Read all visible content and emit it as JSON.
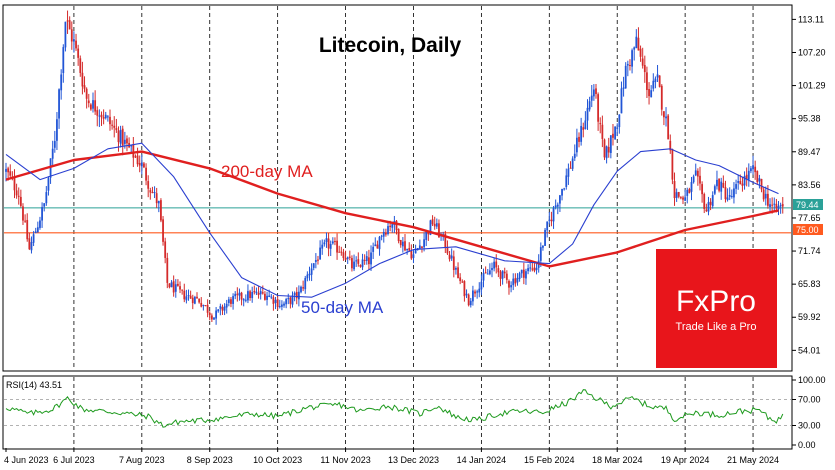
{
  "chart_data": {
    "type": "candlestick",
    "title": "Litecoin, Daily",
    "instrument": "Litecoin",
    "timeframe": "Daily",
    "brand": {
      "name": "FxPro",
      "tagline": "Trade Like a Pro",
      "color": "#e8151b"
    },
    "colors": {
      "bull": "#2155d6",
      "bear": "#d42a2a",
      "ma200": "#e01f1f",
      "ma50": "#2a3fd0",
      "current_price_line": "#2aa198",
      "level_line": "#ff5a1f",
      "rsi_line": "#1e9a1e",
      "grid": "#000000"
    },
    "y_axis": {
      "ticks": [
        "113.11",
        "107.20",
        "101.29",
        "95.38",
        "89.47",
        "83.56",
        "77.65",
        "71.74",
        "65.83",
        "59.92",
        "54.01"
      ],
      "range": [
        50.5,
        115.5
      ]
    },
    "x_axis": {
      "ticks": [
        "4 Jun 2023",
        "6 Jul 2023",
        "7 Aug 2023",
        "8 Sep 2023",
        "10 Oct 2023",
        "11 Nov 2023",
        "13 Dec 2023",
        "14 Jan 2024",
        "15 Feb 2024",
        "18 Mar 2024",
        "19 Apr 2024",
        "21 May 2024"
      ]
    },
    "current_price": "79.44",
    "level": "75.00",
    "annotations": {
      "ma200_label": "200-day MA",
      "ma50_label": "50-day MA"
    },
    "price_path": [
      [
        "2023-06-04",
        86
      ],
      [
        "2023-06-10",
        82
      ],
      [
        "2023-06-15",
        72
      ],
      [
        "2023-06-22",
        80
      ],
      [
        "2023-06-27",
        92
      ],
      [
        "2023-07-02",
        113
      ],
      [
        "2023-07-06",
        109
      ],
      [
        "2023-07-12",
        99
      ],
      [
        "2023-07-20",
        96
      ],
      [
        "2023-07-26",
        93
      ],
      [
        "2023-08-01",
        90
      ],
      [
        "2023-08-07",
        87
      ],
      [
        "2023-08-11",
        83
      ],
      [
        "2023-08-15",
        80
      ],
      [
        "2023-08-19",
        66
      ],
      [
        "2023-08-26",
        64
      ],
      [
        "2023-09-03",
        63
      ],
      [
        "2023-09-10",
        60
      ],
      [
        "2023-09-18",
        63
      ],
      [
        "2023-09-28",
        64
      ],
      [
        "2023-10-05",
        64
      ],
      [
        "2023-10-12",
        62
      ],
      [
        "2023-10-20",
        64
      ],
      [
        "2023-10-26",
        69
      ],
      [
        "2023-11-02",
        73
      ],
      [
        "2023-11-09",
        72
      ],
      [
        "2023-11-14",
        69
      ],
      [
        "2023-11-22",
        70
      ],
      [
        "2023-11-28",
        75
      ],
      [
        "2023-12-03",
        77
      ],
      [
        "2023-12-08",
        73
      ],
      [
        "2023-12-13",
        71
      ],
      [
        "2023-12-18",
        74
      ],
      [
        "2023-12-22",
        77
      ],
      [
        "2023-12-28",
        73
      ],
      [
        "2024-01-03",
        67
      ],
      [
        "2024-01-08",
        63
      ],
      [
        "2024-01-13",
        66
      ],
      [
        "2024-01-20",
        69
      ],
      [
        "2024-01-27",
        66
      ],
      [
        "2024-02-03",
        68
      ],
      [
        "2024-02-09",
        69
      ],
      [
        "2024-02-14",
        76
      ],
      [
        "2024-02-20",
        82
      ],
      [
        "2024-02-24",
        86
      ],
      [
        "2024-03-01",
        93
      ],
      [
        "2024-03-07",
        101
      ],
      [
        "2024-03-12",
        88
      ],
      [
        "2024-03-18",
        95
      ],
      [
        "2024-03-22",
        104
      ],
      [
        "2024-03-27",
        109
      ],
      [
        "2024-04-02",
        100
      ],
      [
        "2024-04-06",
        102
      ],
      [
        "2024-04-11",
        93
      ],
      [
        "2024-04-14",
        82
      ],
      [
        "2024-04-19",
        81
      ],
      [
        "2024-04-24",
        85
      ],
      [
        "2024-04-29",
        79
      ],
      [
        "2024-05-04",
        84
      ],
      [
        "2024-05-10",
        81
      ],
      [
        "2024-05-15",
        84
      ],
      [
        "2024-05-21",
        86
      ],
      [
        "2024-05-26",
        82
      ],
      [
        "2024-05-31",
        79
      ],
      [
        "2024-06-04",
        80
      ]
    ],
    "ma200": [
      [
        "2023-06-04",
        84.5
      ],
      [
        "2023-07-06",
        88
      ],
      [
        "2023-08-07",
        89.5
      ],
      [
        "2023-09-08",
        86.5
      ],
      [
        "2023-10-10",
        82
      ],
      [
        "2023-11-11",
        78.5
      ],
      [
        "2023-12-13",
        76
      ],
      [
        "2024-01-14",
        72.5
      ],
      [
        "2024-02-15",
        69
      ],
      [
        "2024-03-18",
        71.5
      ],
      [
        "2024-04-19",
        75.5
      ],
      [
        "2024-05-21",
        78
      ],
      [
        "2024-06-02",
        79
      ]
    ],
    "ma50": [
      [
        "2023-06-04",
        89
      ],
      [
        "2023-06-20",
        84.5
      ],
      [
        "2023-07-06",
        86.5
      ],
      [
        "2023-07-22",
        90
      ],
      [
        "2023-08-07",
        91
      ],
      [
        "2023-08-22",
        85
      ],
      [
        "2023-09-08",
        75
      ],
      [
        "2023-09-23",
        67
      ],
      [
        "2023-10-10",
        63.8
      ],
      [
        "2023-10-26",
        63.5
      ],
      [
        "2023-11-11",
        66
      ],
      [
        "2023-11-27",
        69.5
      ],
      [
        "2023-12-13",
        72
      ],
      [
        "2024-01-02",
        72.5
      ],
      [
        "2024-01-25",
        70
      ],
      [
        "2024-02-15",
        69.5
      ],
      [
        "2024-02-26",
        73
      ],
      [
        "2024-03-07",
        80
      ],
      [
        "2024-03-18",
        86
      ],
      [
        "2024-03-29",
        89.5
      ],
      [
        "2024-04-12",
        90
      ],
      [
        "2024-04-24",
        88
      ],
      [
        "2024-05-05",
        87
      ],
      [
        "2024-05-21",
        84
      ],
      [
        "2024-06-02",
        82
      ]
    ],
    "rsi": {
      "label": "RSI(14) 43.51",
      "ticks": [
        "100.00",
        "70.00",
        "30.00",
        "0.00"
      ],
      "levels": [
        70,
        30
      ],
      "path": [
        [
          "2023-06-04",
          58
        ],
        [
          "2023-06-15",
          48
        ],
        [
          "2023-06-26",
          55
        ],
        [
          "2023-07-03",
          72
        ],
        [
          "2023-07-10",
          55
        ],
        [
          "2023-07-20",
          52
        ],
        [
          "2023-08-01",
          48
        ],
        [
          "2023-08-10",
          44
        ],
        [
          "2023-08-17",
          30
        ],
        [
          "2023-08-25",
          36
        ],
        [
          "2023-09-05",
          38
        ],
        [
          "2023-09-15",
          42
        ],
        [
          "2023-09-28",
          48
        ],
        [
          "2023-10-10",
          44
        ],
        [
          "2023-10-25",
          58
        ],
        [
          "2023-11-08",
          62
        ],
        [
          "2023-11-18",
          52
        ],
        [
          "2023-11-30",
          60
        ],
        [
          "2023-12-08",
          55
        ],
        [
          "2023-12-16",
          48
        ],
        [
          "2023-12-24",
          60
        ],
        [
          "2024-01-03",
          42
        ],
        [
          "2024-01-12",
          38
        ],
        [
          "2024-01-22",
          48
        ],
        [
          "2024-02-01",
          52
        ],
        [
          "2024-02-12",
          50
        ],
        [
          "2024-02-24",
          66
        ],
        [
          "2024-03-02",
          82
        ],
        [
          "2024-03-08",
          72
        ],
        [
          "2024-03-15",
          60
        ],
        [
          "2024-03-25",
          72
        ],
        [
          "2024-04-02",
          60
        ],
        [
          "2024-04-10",
          56
        ],
        [
          "2024-04-14",
          40
        ],
        [
          "2024-04-24",
          50
        ],
        [
          "2024-05-05",
          46
        ],
        [
          "2024-05-15",
          52
        ],
        [
          "2024-05-24",
          54
        ],
        [
          "2024-05-28",
          42
        ],
        [
          "2024-06-01",
          38
        ],
        [
          "2024-06-04",
          44
        ]
      ]
    }
  }
}
